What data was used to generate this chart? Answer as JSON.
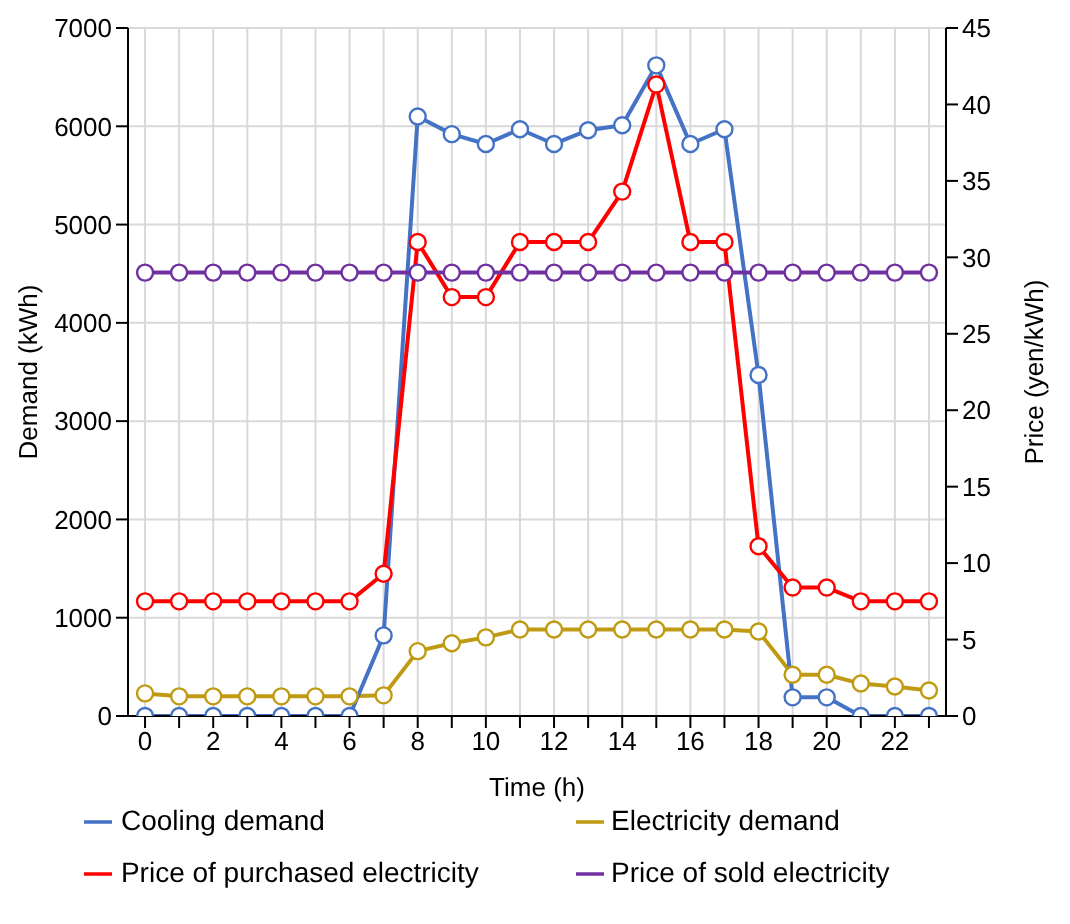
{
  "chart_data": {
    "type": "line",
    "xlabel": "Time (h)",
    "ylabel": "Demand (kWh)",
    "y2label": "Price (yen/kWh)",
    "x": [
      0,
      1,
      2,
      3,
      4,
      5,
      6,
      7,
      8,
      9,
      10,
      11,
      12,
      13,
      14,
      15,
      16,
      17,
      18,
      19,
      20,
      21,
      22,
      23
    ],
    "xlim": [
      -0.5,
      23.5
    ],
    "xticks": [
      0,
      {
        "value": 1,
        "label": null
      },
      2,
      {
        "value": 3,
        "label": null
      },
      4,
      {
        "value": 5,
        "label": null
      },
      6,
      {
        "value": 7,
        "label": null
      },
      8,
      {
        "value": 9,
        "label": null
      },
      10,
      {
        "value": 11,
        "label": null
      },
      12,
      {
        "value": 13,
        "label": null
      },
      14,
      {
        "value": 15,
        "label": null
      },
      16,
      {
        "value": 17,
        "label": null
      },
      18,
      {
        "value": 19,
        "label": null
      },
      20,
      {
        "value": 21,
        "label": null
      },
      22,
      {
        "value": 23,
        "label": null
      }
    ],
    "ylim": [
      0,
      7000
    ],
    "yticks": [
      0,
      1000,
      2000,
      3000,
      4000,
      5000,
      6000,
      7000
    ],
    "y2lim": [
      0,
      45
    ],
    "y2ticks": [
      0,
      5,
      10,
      15,
      20,
      25,
      30,
      35,
      40,
      45
    ],
    "grid": true,
    "legend": "bottom",
    "marker": "circle",
    "line_style": "solid",
    "series": [
      {
        "name": "Electricity demand",
        "color": "#c09a12",
        "values": [
          230,
          200,
          200,
          200,
          200,
          200,
          200,
          210,
          660,
          740,
          800,
          880,
          880,
          880,
          880,
          880,
          880,
          880,
          860,
          420,
          420,
          330,
          300,
          260
        ]
      },
      {
        "name": "Cooling demand",
        "color": "#4472c4",
        "values": [
          0,
          0,
          0,
          0,
          0,
          0,
          0,
          820,
          6100,
          5920,
          5820,
          5970,
          5820,
          5960,
          6010,
          6620,
          5820,
          5970,
          3470,
          190,
          190,
          0,
          0,
          0
        ]
      },
      {
        "name": "Price of purchased electricity",
        "color": "#ff0000",
        "axis": "y2",
        "values": [
          7.5,
          7.5,
          7.5,
          7.5,
          7.5,
          7.5,
          7.5,
          9.3,
          31,
          27.4,
          27.4,
          31,
          31,
          31,
          34.3,
          41.3,
          31,
          31,
          11.1,
          8.4,
          8.4,
          7.5,
          7.5,
          7.5
        ]
      },
      {
        "name": "Price of sold electricity",
        "color": "#7030a0",
        "axis": "y2",
        "values": [
          29,
          29,
          29,
          29,
          29,
          29,
          29,
          29,
          29,
          29,
          29,
          29,
          29,
          29,
          29,
          29,
          29,
          29,
          29,
          29,
          29,
          29,
          29,
          29
        ]
      }
    ]
  }
}
